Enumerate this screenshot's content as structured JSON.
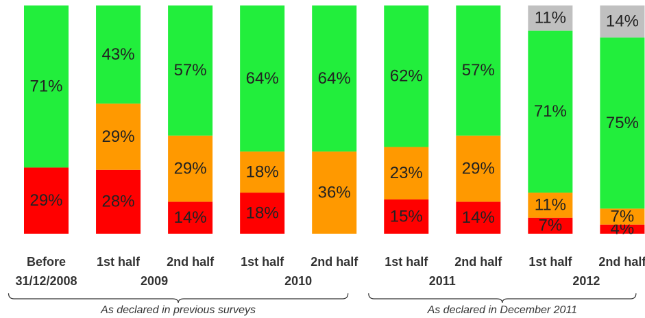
{
  "chart_data": {
    "type": "stacked_bar",
    "categories": [
      "Before",
      "1st half",
      "2nd half",
      "1st half",
      "2nd half",
      "1st half",
      "2nd half",
      "1st half",
      "2nd half"
    ],
    "groups": [
      {
        "label": "31/12/2008",
        "size": 1
      },
      {
        "label": "2009",
        "size": 2
      },
      {
        "label": "2010",
        "size": 2
      },
      {
        "label": "2011",
        "size": 2
      },
      {
        "label": "2012",
        "size": 2
      }
    ],
    "brackets": [
      {
        "label": "As declared in previous surveys",
        "size": 5
      },
      {
        "label": "As declared in December 2011",
        "size": 4
      }
    ],
    "ylim": [
      0,
      100
    ],
    "series": [
      {
        "color": "#ff0000",
        "values": [
          29,
          28,
          14,
          18,
          null,
          15,
          14,
          7,
          4
        ],
        "value_labels": [
          "29%",
          "28%",
          "14%",
          "18%",
          null,
          "15%",
          "14%",
          "7%",
          "4%"
        ]
      },
      {
        "color": "#ff9900",
        "values": [
          null,
          29,
          29,
          18,
          36,
          23,
          29,
          11,
          7
        ],
        "value_labels": [
          null,
          "29%",
          "29%",
          "18%",
          "36%",
          "23%",
          "29%",
          "11%",
          "7%"
        ]
      },
      {
        "color": "#22ee3c",
        "values": [
          71,
          43,
          57,
          64,
          64,
          62,
          57,
          71,
          75
        ],
        "value_labels": [
          "71%",
          "43%",
          "57%",
          "64%",
          "64%",
          "62%",
          "57%",
          "71%",
          "75%"
        ]
      },
      {
        "color": "#c0c0c0",
        "values": [
          null,
          null,
          null,
          null,
          null,
          null,
          null,
          11,
          14
        ],
        "value_labels": [
          null,
          null,
          null,
          null,
          null,
          null,
          null,
          "11%",
          "14%"
        ]
      }
    ]
  }
}
